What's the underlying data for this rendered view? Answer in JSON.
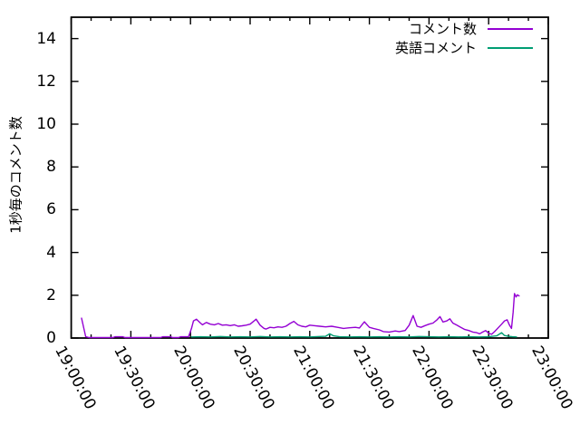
{
  "chart_data": {
    "type": "line",
    "title": "",
    "xlabel": "",
    "ylabel": "1秒毎のコメント数",
    "x_tick_labels": [
      "19:00:00",
      "19:30:00",
      "20:00:00",
      "20:30:00",
      "21:00:00",
      "21:30:00",
      "22:00:00",
      "22:30:00",
      "23:00:00"
    ],
    "x_tick_minutes": [
      0,
      30,
      60,
      90,
      120,
      150,
      180,
      210,
      240
    ],
    "x_minor_step_minutes": 10,
    "xlim_minutes": [
      0,
      240
    ],
    "y_ticks": [
      0,
      2,
      4,
      6,
      8,
      10,
      12,
      14
    ],
    "ylim": [
      0,
      15
    ],
    "grid": false,
    "x_label_rotation_deg": 62,
    "axis_color": "#000000",
    "background_color": "#ffffff",
    "legend_position": "top-right-inside",
    "series": [
      {
        "name": "コメント数",
        "color": "#9400d3",
        "points": [
          [
            5.2,
            0.93
          ],
          [
            7.3,
            0.06
          ],
          [
            9,
            0.02
          ],
          [
            21,
            0.02
          ],
          [
            22,
            0.06
          ],
          [
            26,
            0.06
          ],
          [
            27,
            0.02
          ],
          [
            45,
            0.02
          ],
          [
            46,
            0.06
          ],
          [
            50,
            0.06
          ],
          [
            51,
            0.02
          ],
          [
            54,
            0.02
          ],
          [
            55,
            0.06
          ],
          [
            59,
            0.06
          ],
          [
            60.5,
            0.45
          ],
          [
            61.5,
            0.8
          ],
          [
            63,
            0.88
          ],
          [
            65,
            0.7
          ],
          [
            66,
            0.62
          ],
          [
            68,
            0.73
          ],
          [
            70,
            0.65
          ],
          [
            72,
            0.62
          ],
          [
            74,
            0.68
          ],
          [
            76,
            0.6
          ],
          [
            78,
            0.62
          ],
          [
            80,
            0.58
          ],
          [
            82,
            0.62
          ],
          [
            84,
            0.55
          ],
          [
            86,
            0.57
          ],
          [
            88,
            0.6
          ],
          [
            90,
            0.65
          ],
          [
            92,
            0.8
          ],
          [
            93,
            0.88
          ],
          [
            95,
            0.6
          ],
          [
            97,
            0.45
          ],
          [
            98,
            0.42
          ],
          [
            100,
            0.5
          ],
          [
            102,
            0.48
          ],
          [
            104,
            0.52
          ],
          [
            106,
            0.5
          ],
          [
            108,
            0.55
          ],
          [
            110,
            0.68
          ],
          [
            112,
            0.78
          ],
          [
            114,
            0.62
          ],
          [
            116,
            0.55
          ],
          [
            118,
            0.52
          ],
          [
            120,
            0.6
          ],
          [
            122,
            0.58
          ],
          [
            125,
            0.55
          ],
          [
            128,
            0.52
          ],
          [
            131,
            0.55
          ],
          [
            134,
            0.5
          ],
          [
            137,
            0.45
          ],
          [
            140,
            0.48
          ],
          [
            143,
            0.5
          ],
          [
            145,
            0.47
          ],
          [
            147.5,
            0.76
          ],
          [
            150,
            0.5
          ],
          [
            152,
            0.45
          ],
          [
            155,
            0.38
          ],
          [
            157,
            0.3
          ],
          [
            160,
            0.28
          ],
          [
            163,
            0.33
          ],
          [
            165,
            0.3
          ],
          [
            168,
            0.35
          ],
          [
            170,
            0.6
          ],
          [
            172,
            1.05
          ],
          [
            174,
            0.55
          ],
          [
            176,
            0.5
          ],
          [
            178,
            0.58
          ],
          [
            180,
            0.65
          ],
          [
            182,
            0.7
          ],
          [
            184,
            0.85
          ],
          [
            185.5,
            1.0
          ],
          [
            187,
            0.75
          ],
          [
            189,
            0.8
          ],
          [
            190.5,
            0.9
          ],
          [
            192,
            0.7
          ],
          [
            194,
            0.6
          ],
          [
            196,
            0.5
          ],
          [
            198,
            0.4
          ],
          [
            200,
            0.35
          ],
          [
            202,
            0.28
          ],
          [
            204,
            0.25
          ],
          [
            205.5,
            0.2
          ],
          [
            207,
            0.28
          ],
          [
            208.5,
            0.35
          ],
          [
            210,
            0.22
          ],
          [
            211.5,
            0.18
          ],
          [
            213,
            0.3
          ],
          [
            215,
            0.5
          ],
          [
            216.5,
            0.65
          ],
          [
            218,
            0.8
          ],
          [
            219.3,
            0.85
          ],
          [
            220.5,
            0.6
          ],
          [
            221.5,
            0.45
          ],
          [
            222.3,
            1.2
          ],
          [
            223,
            2.08
          ],
          [
            223.8,
            1.92
          ],
          [
            224.4,
            2.02
          ],
          [
            225.3,
            1.97
          ]
        ]
      },
      {
        "name": "英語コメント",
        "color": "#009e73",
        "points": [
          [
            60.5,
            0.05
          ],
          [
            65,
            0.06
          ],
          [
            70,
            0.05
          ],
          [
            75,
            0.07
          ],
          [
            80,
            0.05
          ],
          [
            85,
            0.06
          ],
          [
            90,
            0.05
          ],
          [
            95,
            0.07
          ],
          [
            100,
            0.05
          ],
          [
            105,
            0.06
          ],
          [
            110,
            0.05
          ],
          [
            115,
            0.06
          ],
          [
            120,
            0.05
          ],
          [
            125,
            0.07
          ],
          [
            128,
            0.08
          ],
          [
            130,
            0.2
          ],
          [
            132,
            0.1
          ],
          [
            135,
            0.06
          ],
          [
            140,
            0.05
          ],
          [
            145,
            0.06
          ],
          [
            150,
            0.05
          ],
          [
            155,
            0.06
          ],
          [
            160,
            0.05
          ],
          [
            165,
            0.06
          ],
          [
            170,
            0.05
          ],
          [
            175,
            0.07
          ],
          [
            180,
            0.06
          ],
          [
            185,
            0.05
          ],
          [
            190,
            0.06
          ],
          [
            195,
            0.05
          ],
          [
            200,
            0.06
          ],
          [
            205,
            0.05
          ],
          [
            210,
            0.06
          ],
          [
            214,
            0.1
          ],
          [
            216.5,
            0.25
          ],
          [
            218,
            0.12
          ],
          [
            220,
            0.08
          ],
          [
            222,
            0.06
          ],
          [
            224,
            0.05
          ]
        ]
      }
    ]
  }
}
